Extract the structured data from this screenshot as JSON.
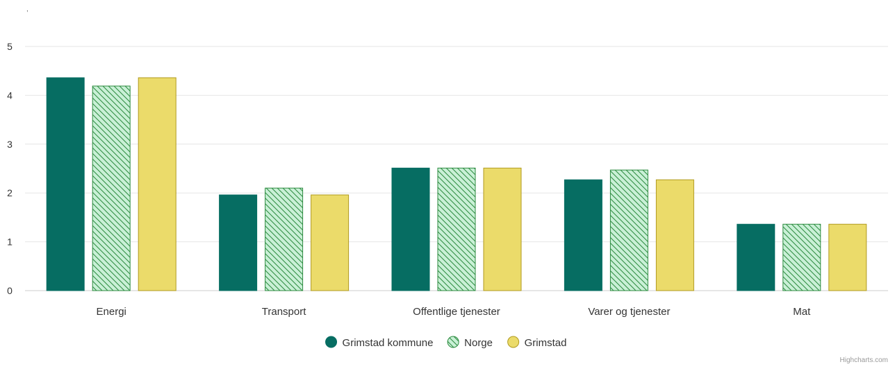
{
  "credit": "Highcharts.com",
  "corner_mark": ",",
  "colors": {
    "Grimstad kommune": "#066d62",
    "Norge": "#c9f0d6",
    "Norge_stroke": "#2b8a3e",
    "Grimstad": "#ebdb6a",
    "Grimstad_stroke": "#b09a1f",
    "grid": "#e6e6e6",
    "text": "#333333"
  },
  "chart_data": {
    "type": "bar",
    "title": "",
    "xlabel": "",
    "ylabel": "",
    "ylim": [
      0,
      5
    ],
    "yticks": [
      0,
      1,
      2,
      3,
      4,
      5
    ],
    "grid": true,
    "legend_position": "bottom-center",
    "categories": [
      "Energi",
      "Transport",
      "Offentlige tjenester",
      "Varer og tjenester",
      "Mat"
    ],
    "series": [
      {
        "name": "Grimstad kommune",
        "values": [
          4.36,
          1.96,
          2.51,
          2.27,
          1.36
        ],
        "pattern": "solid"
      },
      {
        "name": "Norge",
        "values": [
          4.19,
          2.1,
          2.51,
          2.47,
          1.36
        ],
        "pattern": "hatched"
      },
      {
        "name": "Grimstad",
        "values": [
          4.36,
          1.96,
          2.51,
          2.27,
          1.36
        ],
        "pattern": "solid"
      }
    ]
  }
}
